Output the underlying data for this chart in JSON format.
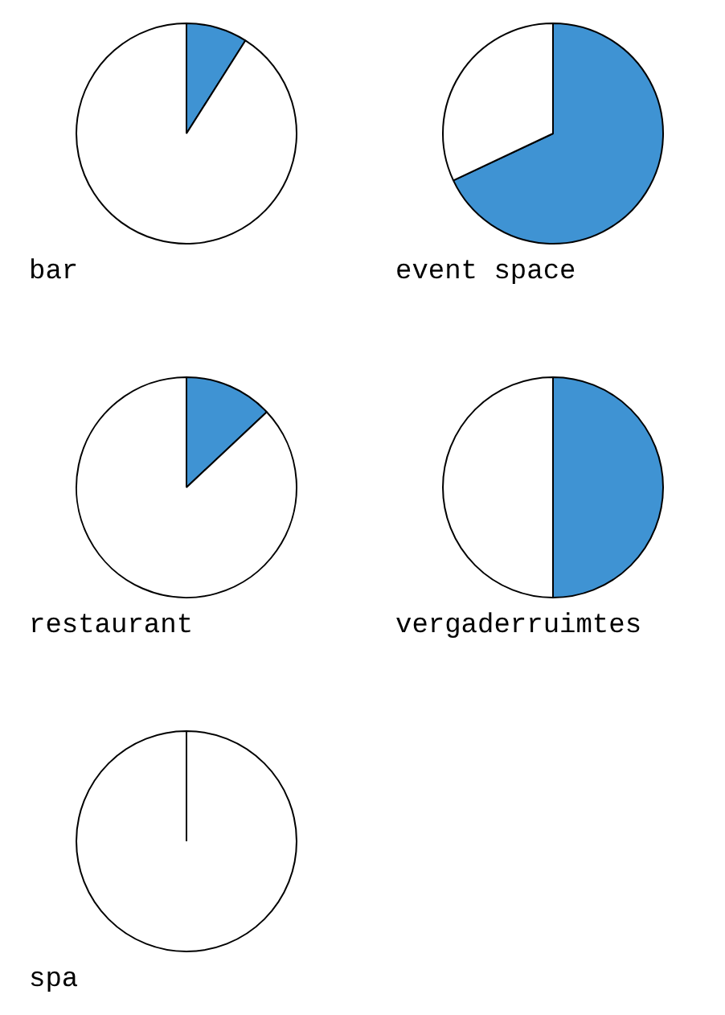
{
  "chart_data": [
    {
      "type": "pie",
      "title": "bar",
      "categories": [
        null,
        null
      ],
      "values": [
        9,
        91
      ],
      "colors": [
        "#3f93d3",
        "#ffffff"
      ]
    },
    {
      "type": "pie",
      "title": "event space",
      "categories": [
        null,
        null
      ],
      "values": [
        68,
        32
      ],
      "colors": [
        "#3f93d3",
        "#ffffff"
      ]
    },
    {
      "type": "pie",
      "title": "restaurant",
      "categories": [
        null,
        null
      ],
      "values": [
        13,
        87
      ],
      "colors": [
        "#3f93d3",
        "#ffffff"
      ]
    },
    {
      "type": "pie",
      "title": "vergaderruimtes",
      "categories": [
        null,
        null
      ],
      "values": [
        50,
        50
      ],
      "colors": [
        "#3f93d3",
        "#ffffff"
      ]
    },
    {
      "type": "pie",
      "title": "spa",
      "categories": [
        null,
        null
      ],
      "values": [
        0,
        100
      ],
      "colors": [
        "#3f93d3",
        "#ffffff"
      ]
    }
  ]
}
